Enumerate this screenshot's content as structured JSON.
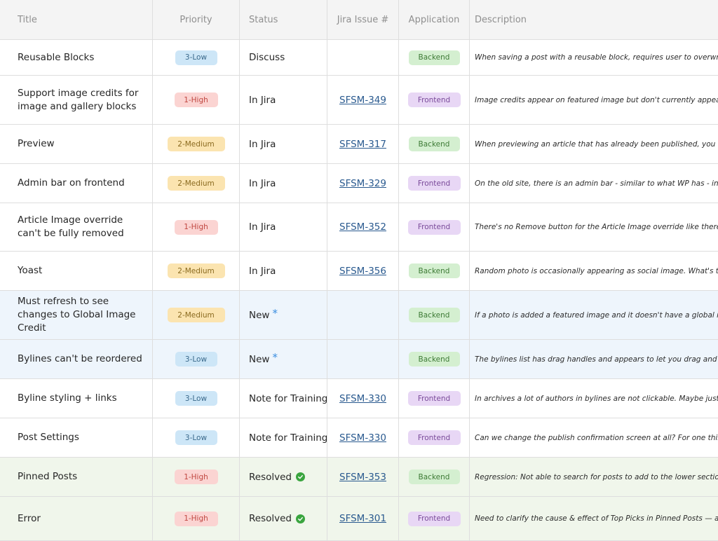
{
  "columns": {
    "title": "Title",
    "priority": "Priority",
    "status": "Status",
    "jira": "Jira Issue #",
    "application": "Application",
    "description": "Description"
  },
  "rows": [
    {
      "title": "Reusable Blocks",
      "priority": "3-Low",
      "status": "Discuss",
      "jira": "",
      "application": "Backend",
      "description": "When saving a post with a reusable block, requires user to overwrite"
    },
    {
      "title": "Support image credits for image and gallery blocks",
      "priority": "1-High",
      "status": "In Jira",
      "jira": "SFSM-349",
      "application": "Frontend",
      "description": "Image credits appear on featured image but don't currently appear o"
    },
    {
      "title": "Preview",
      "priority": "2-Medium",
      "status": "In Jira",
      "jira": "SFSM-317",
      "application": "Backend",
      "description": "When previewing an article that has already been published, you don"
    },
    {
      "title": "Admin bar on frontend",
      "priority": "2-Medium",
      "status": "In Jira",
      "jira": "SFSM-329",
      "application": "Frontend",
      "description": "On the old site, there is an admin bar - similar to what WP has - in th"
    },
    {
      "title": "Article Image override can't be fully removed",
      "priority": "1-High",
      "status": "In Jira",
      "jira": "SFSM-352",
      "application": "Frontend",
      "description": "There's no Remove button for the Article Image override like there is f"
    },
    {
      "title": "Yoast",
      "priority": "2-Medium",
      "status": "In Jira",
      "jira": "SFSM-356",
      "application": "Backend",
      "description": "Random photo is occasionally appearing as social image. What's the"
    },
    {
      "title": "Must refresh to see changes to Global Image Credit",
      "priority": "2-Medium",
      "status": "New",
      "jira": "",
      "application": "Backend",
      "description": "If a photo is added a featured image and it doesn't have a global ima"
    },
    {
      "title": "Bylines can't be reordered",
      "priority": "3-Low",
      "status": "New",
      "jira": "",
      "application": "Backend",
      "description": "The bylines list has drag handles and appears to let you drag and dr"
    },
    {
      "title": "Byline styling + links",
      "priority": "3-Low",
      "status": "Note for Training",
      "jira": "SFSM-330",
      "application": "Frontend",
      "description": "In archives a lot of authors in bylines are not clickable. Maybe just no"
    },
    {
      "title": "Post Settings",
      "priority": "3-Low",
      "status": "Note for Training",
      "jira": "SFSM-330",
      "application": "Frontend",
      "description": "Can we change the publish confirmation screen at all? For one thing,"
    },
    {
      "title": "Pinned Posts",
      "priority": "1-High",
      "status": "Resolved",
      "jira": "SFSM-353",
      "application": "Backend",
      "description": "Regression: Not able to search for posts to add to the lower sections"
    },
    {
      "title": "Error",
      "priority": "1-High",
      "status": "Resolved",
      "jira": "SFSM-301",
      "application": "Frontend",
      "description": "Need to clarify the cause & effect of Top Picks in Pinned Posts — add"
    }
  ],
  "colors": {
    "new_row": "#eef5fc",
    "resolved_row": "#f0f6eb",
    "low": "#cde6f7",
    "medium": "#fbe4b0",
    "high": "#fbd4d2",
    "backend": "#d4efd0",
    "frontend": "#e8d7f5"
  },
  "icons": {
    "new_marker": "asterisk-icon",
    "resolved_marker": "check-circle-icon"
  }
}
